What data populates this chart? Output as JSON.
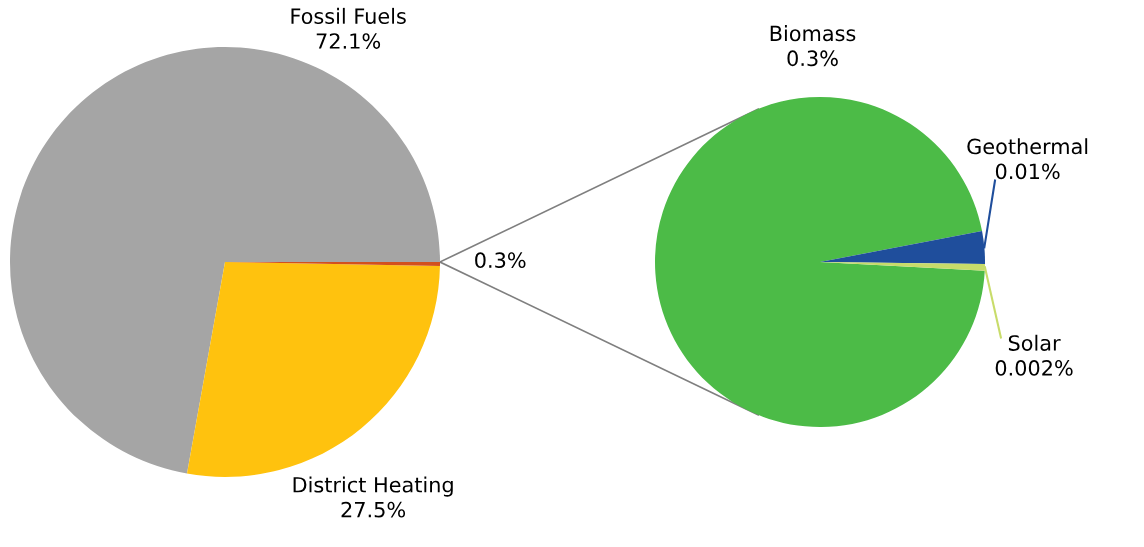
{
  "chart_data": [
    {
      "type": "pie",
      "categories": [
        "Fossil Fuels",
        "District Heating",
        null
      ],
      "values": [
        72.1,
        27.5,
        0.3
      ],
      "value_labels": [
        "72.1%",
        "27.5%",
        "0.3%"
      ],
      "colors": [
        "#a5a5a5",
        "#ffc20e",
        "#d2501e"
      ]
    },
    {
      "type": "pie",
      "categories": [
        "Biomass",
        "Geothermal",
        "Solar"
      ],
      "values": [
        0.3,
        0.01,
        0.002
      ],
      "value_labels": [
        "0.3%",
        "0.01%",
        "0.002%"
      ],
      "colors": [
        "#4cbb47",
        "#1f4e9c",
        "#c8dc6a"
      ]
    }
  ]
}
